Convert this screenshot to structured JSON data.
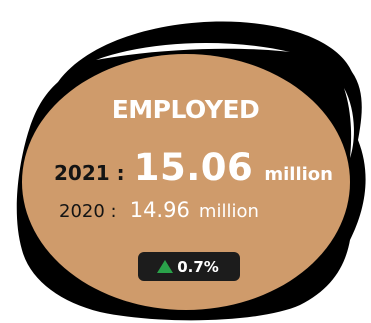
{
  "card": {
    "title": "EMPLOYED",
    "current": {
      "year_label": "2021 :",
      "value": "15.06",
      "unit": "million"
    },
    "previous": {
      "year_label": "2020 :",
      "value": "14.96",
      "unit": "million"
    },
    "change": {
      "icon": "up-arrow-icon",
      "text": "0.7%",
      "color": "#2aa24a"
    }
  },
  "colors": {
    "blob": "#cf9b6b",
    "outline": "#000000",
    "badge": "#1c1c1c"
  }
}
